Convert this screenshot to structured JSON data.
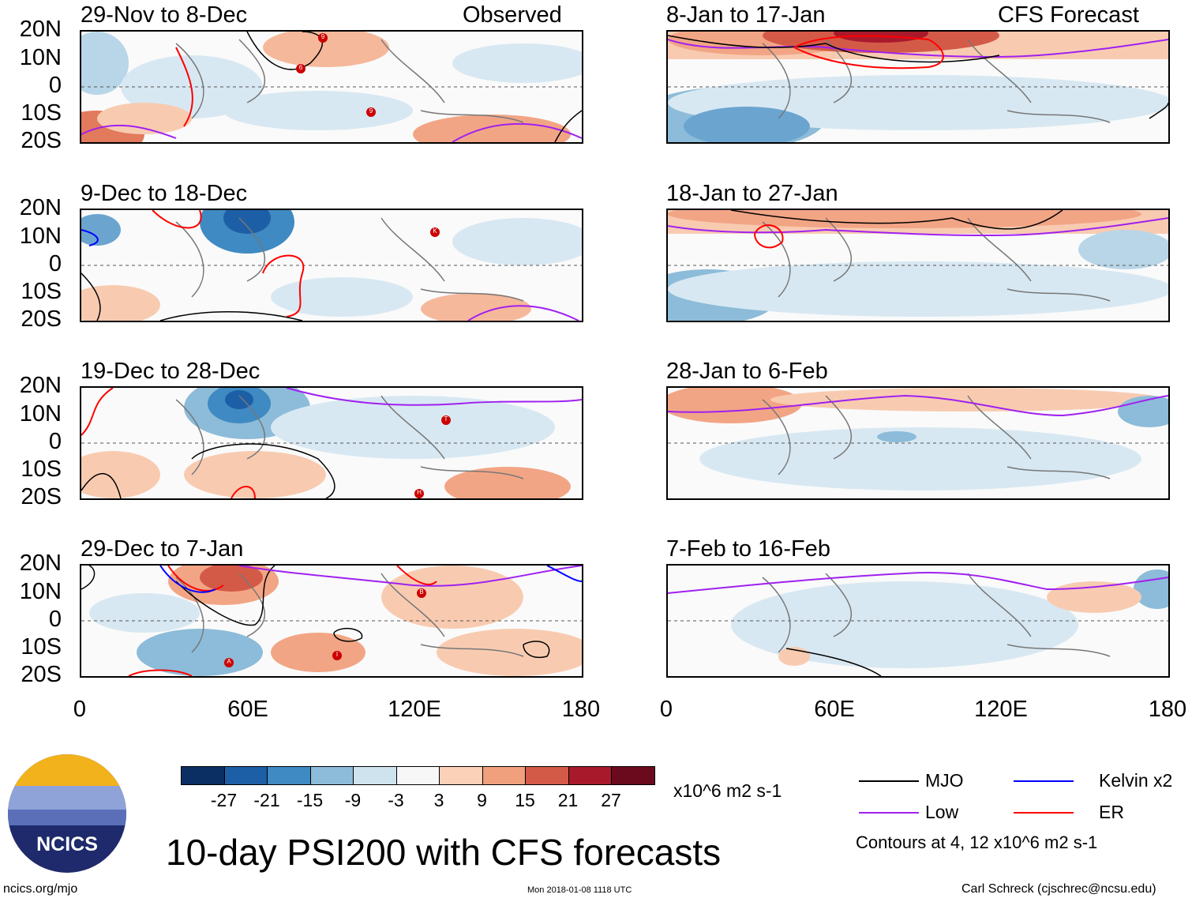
{
  "panels_left": [
    {
      "title": "29-Nov to 8-Dec",
      "tag": "Observed"
    },
    {
      "title": "9-Dec to 18-Dec",
      "tag": ""
    },
    {
      "title": "19-Dec to 28-Dec",
      "tag": ""
    },
    {
      "title": "29-Dec to 7-Jan",
      "tag": ""
    }
  ],
  "panels_right": [
    {
      "title": "8-Jan to 17-Jan",
      "tag": "CFS Forecast"
    },
    {
      "title": "18-Jan to 27-Jan",
      "tag": ""
    },
    {
      "title": "28-Jan to 6-Feb",
      "tag": ""
    },
    {
      "title": "7-Feb to 16-Feb",
      "tag": ""
    }
  ],
  "lat_labels": [
    "20N",
    "10N",
    "0",
    "10S",
    "20S"
  ],
  "lon_labels": [
    "0",
    "60E",
    "120E",
    "180"
  ],
  "colorbar": {
    "labels": [
      "-27",
      "-21",
      "-15",
      "-9",
      "-3",
      "3",
      "9",
      "15",
      "21",
      "27"
    ],
    "colors": [
      "#0b2f63",
      "#1d5fa6",
      "#3f8ac2",
      "#8cbcd9",
      "#cfe3ef",
      "#f7f7f7",
      "#fbd1b7",
      "#f0a07c",
      "#d45a48",
      "#a81a2b",
      "#6b0a1d"
    ],
    "units": "x10^6 m2 s-1"
  },
  "legend": {
    "mjo": "MJO",
    "kelvin": "Kelvin x2",
    "low": "Low",
    "er": "ER",
    "mjo_color": "#000000",
    "kelvin_color": "#0000ff",
    "low_color": "#a020f0",
    "er_color": "#ff0000",
    "contours": "Contours at 4, 12 x10^6 m2 s-1"
  },
  "logo_text": "NCICS",
  "main_title": "10-day PSI200 with CFS forecasts",
  "footer": {
    "url": "ncics.org/mjo",
    "timestamp": "Mon 2018-01-08 1118 UTC",
    "author": "Carl Schreck (cjschrec@ncsu.edu)"
  },
  "storm_markers": {
    "p0": [
      "9",
      "6",
      "9"
    ],
    "p1": [
      "K"
    ],
    "p2": [
      "T",
      "H"
    ],
    "p3": [
      "B",
      "I",
      "A"
    ]
  }
}
